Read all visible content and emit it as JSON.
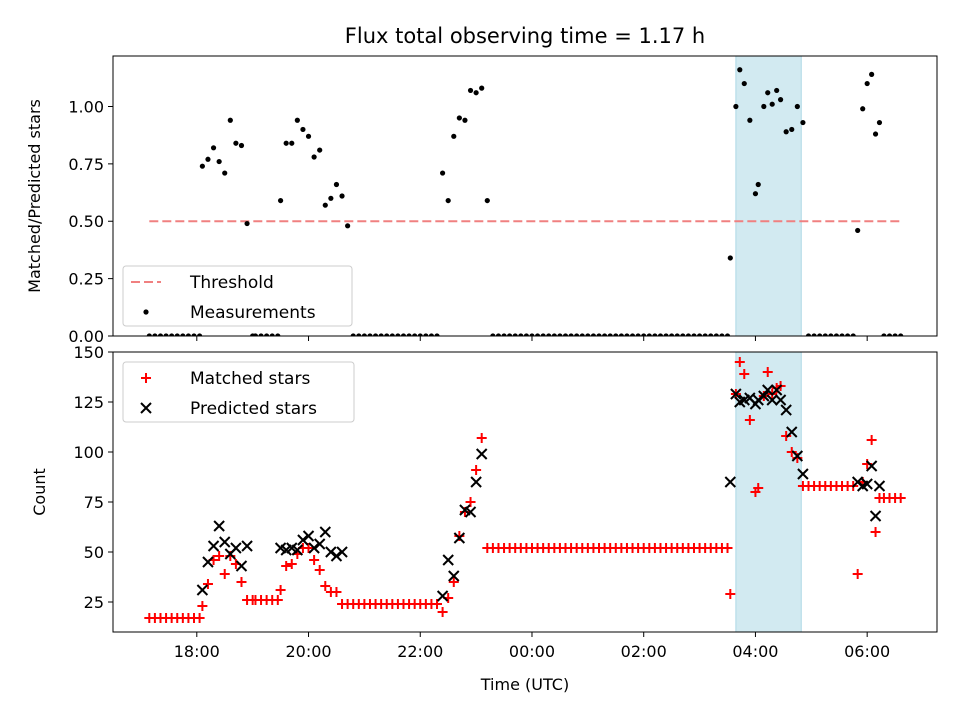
{
  "figure": {
    "title": "Flux total observing time = 1.17 h",
    "xlabel": "Time (UTC)",
    "x_tick_labels": [
      "18:00",
      "20:00",
      "22:00",
      "00:00",
      "02:00",
      "04:00",
      "06:00"
    ]
  },
  "colors": {
    "threshold": "#f08080",
    "measurements": "#000000",
    "matched": "#ff0000",
    "predicted": "#000000",
    "highlight": "#add8e6"
  },
  "chart_data": [
    {
      "type": "scatter",
      "ylabel": "Matched/Predicted stars",
      "x_unit": "hours since 00:00 UTC",
      "xlim": [
        -7.5,
        7.25
      ],
      "ylim": [
        0,
        1.22
      ],
      "y_ticks": [
        0.0,
        0.25,
        0.5,
        0.75,
        1.0
      ],
      "y_tick_labels": [
        "0.00",
        "0.25",
        "0.50",
        "0.75",
        "1.00"
      ],
      "legend_position": "lower-left",
      "highlight_span": [
        3.65,
        4.82
      ],
      "series": [
        {
          "name": "Threshold",
          "style": "dashed-line",
          "x": [
            -6.85,
            6.6
          ],
          "y": [
            0.5,
            0.5
          ]
        },
        {
          "name": "Measurements",
          "style": "dot",
          "x": [
            -6.85,
            -6.75,
            -6.65,
            -6.55,
            -6.45,
            -6.35,
            -6.25,
            -6.15,
            -6.05,
            -5.95,
            -5.9,
            -5.8,
            -5.7,
            -5.6,
            -5.5,
            -5.4,
            -5.3,
            -5.2,
            -5.1,
            -5.0,
            -4.95,
            -4.85,
            -4.75,
            -4.65,
            -4.55,
            -4.5,
            -4.4,
            -4.3,
            -4.2,
            -4.1,
            -4.0,
            -3.9,
            -3.8,
            -3.7,
            -3.6,
            -3.5,
            -3.4,
            -3.3,
            -3.2,
            -3.1,
            -3.0,
            -2.9,
            -2.8,
            -2.7,
            -2.6,
            -2.5,
            -2.4,
            -2.3,
            -2.2,
            -2.1,
            -2.0,
            -1.9,
            -1.8,
            -1.7,
            -1.6,
            -1.5,
            -1.4,
            -1.3,
            -1.2,
            -1.1,
            -1.0,
            -0.9,
            -0.8,
            -0.7,
            -0.6,
            -0.5,
            -0.4,
            -0.3,
            -0.2,
            -0.1,
            0.0,
            0.1,
            0.2,
            0.3,
            0.4,
            0.5,
            0.6,
            0.7,
            0.8,
            0.9,
            1.0,
            1.1,
            1.2,
            1.3,
            1.4,
            1.5,
            1.6,
            1.7,
            1.8,
            1.9,
            2.0,
            2.1,
            2.2,
            2.3,
            2.4,
            2.5,
            2.6,
            2.7,
            2.8,
            2.9,
            3.0,
            3.1,
            3.2,
            3.3,
            3.4,
            3.5,
            3.55,
            3.65,
            3.72,
            3.8,
            3.9,
            4.0,
            4.05,
            4.15,
            4.22,
            4.3,
            4.38,
            4.45,
            4.55,
            4.65,
            4.75,
            4.85,
            4.95,
            5.05,
            5.15,
            5.25,
            5.35,
            5.45,
            5.55,
            5.65,
            5.75,
            5.83,
            5.92,
            6.0,
            6.08,
            6.15,
            6.22,
            6.3,
            6.4,
            6.5,
            6.6
          ],
          "y": [
            0,
            0,
            0,
            0,
            0,
            0,
            0,
            0,
            0,
            0,
            0.74,
            0.77,
            0.82,
            0.76,
            0.71,
            0.94,
            0.84,
            0.83,
            0.49,
            0,
            0,
            0,
            0,
            0,
            0,
            0.59,
            0.84,
            0.84,
            0.94,
            0.9,
            0.87,
            0.78,
            0.81,
            0.57,
            0.6,
            0.66,
            0.61,
            0.48,
            0,
            0,
            0,
            0,
            0,
            0,
            0,
            0,
            0,
            0,
            0,
            0,
            0,
            0,
            0,
            0,
            0.71,
            0.59,
            0.87,
            0.95,
            0.94,
            1.07,
            1.06,
            1.08,
            0.59,
            0,
            0,
            0,
            0,
            0,
            0,
            0,
            0,
            0,
            0,
            0,
            0,
            0,
            0,
            0,
            0,
            0,
            0,
            0,
            0,
            0,
            0,
            0,
            0,
            0,
            0,
            0,
            0,
            0,
            0,
            0,
            0,
            0,
            0,
            0,
            0,
            0,
            0,
            0,
            0,
            0,
            0,
            0,
            0.34,
            1.0,
            1.16,
            1.1,
            0.94,
            0.62,
            0.66,
            1.0,
            1.06,
            1.01,
            1.07,
            1.03,
            0.89,
            0.9,
            1.0,
            0.93,
            0,
            0,
            0,
            0,
            0,
            0,
            0,
            0,
            0,
            0.46,
            0.99,
            1.1,
            1.14,
            0.88,
            0.93,
            0,
            0,
            0,
            0
          ]
        }
      ]
    },
    {
      "type": "scatter",
      "ylabel": "Count",
      "x_unit": "hours since 00:00 UTC",
      "xlim": [
        -7.5,
        7.25
      ],
      "ylim": [
        10,
        150
      ],
      "y_ticks": [
        25,
        50,
        75,
        100,
        125,
        150
      ],
      "y_tick_labels": [
        "25",
        "50",
        "75",
        "100",
        "125",
        "150"
      ],
      "legend_position": "upper-left",
      "highlight_span": [
        3.65,
        4.82
      ],
      "series": [
        {
          "name": "Matched stars",
          "style": "plus",
          "x": [
            -6.85,
            -6.75,
            -6.65,
            -6.55,
            -6.45,
            -6.35,
            -6.25,
            -6.15,
            -6.05,
            -5.95,
            -5.9,
            -5.8,
            -5.7,
            -5.6,
            -5.5,
            -5.4,
            -5.3,
            -5.2,
            -5.1,
            -5.0,
            -4.95,
            -4.85,
            -4.75,
            -4.65,
            -4.55,
            -4.5,
            -4.4,
            -4.3,
            -4.2,
            -4.1,
            -4.0,
            -3.9,
            -3.8,
            -3.7,
            -3.6,
            -3.5,
            -3.4,
            -3.3,
            -3.2,
            -3.1,
            -3.0,
            -2.9,
            -2.8,
            -2.7,
            -2.6,
            -2.5,
            -2.4,
            -2.3,
            -2.2,
            -2.1,
            -2.0,
            -1.9,
            -1.8,
            -1.7,
            -1.6,
            -1.5,
            -1.4,
            -1.3,
            -1.2,
            -1.1,
            -1.0,
            -0.9,
            -0.8,
            -0.7,
            -0.6,
            -0.5,
            -0.4,
            -0.3,
            -0.2,
            -0.1,
            0.0,
            0.1,
            0.2,
            0.3,
            0.4,
            0.5,
            0.6,
            0.7,
            0.8,
            0.9,
            1.0,
            1.1,
            1.2,
            1.3,
            1.4,
            1.5,
            1.6,
            1.7,
            1.8,
            1.9,
            2.0,
            2.1,
            2.2,
            2.3,
            2.4,
            2.5,
            2.6,
            2.7,
            2.8,
            2.9,
            3.0,
            3.1,
            3.2,
            3.3,
            3.4,
            3.5,
            3.55,
            3.65,
            3.72,
            3.8,
            3.9,
            4.0,
            4.05,
            4.15,
            4.22,
            4.3,
            4.38,
            4.45,
            4.55,
            4.65,
            4.75,
            4.85,
            4.95,
            5.05,
            5.15,
            5.25,
            5.35,
            5.45,
            5.55,
            5.65,
            5.75,
            5.83,
            5.92,
            6.0,
            6.08,
            6.15,
            6.22,
            6.3,
            6.4,
            6.5,
            6.6
          ],
          "y": [
            17,
            17,
            17,
            17,
            17,
            17,
            17,
            17,
            17,
            17,
            23,
            34,
            46,
            48,
            39,
            48,
            44,
            35,
            26,
            26,
            26,
            26,
            26,
            26,
            26,
            31,
            43,
            44,
            49,
            52,
            52,
            46,
            41,
            33,
            30,
            30,
            24,
            24,
            24,
            24,
            24,
            24,
            24,
            24,
            24,
            24,
            24,
            24,
            24,
            24,
            24,
            24,
            24,
            24,
            20,
            27,
            35,
            58,
            70,
            75,
            91,
            107,
            52,
            52,
            52,
            52,
            52,
            52,
            52,
            52,
            52,
            52,
            52,
            52,
            52,
            52,
            52,
            52,
            52,
            52,
            52,
            52,
            52,
            52,
            52,
            52,
            52,
            52,
            52,
            52,
            52,
            52,
            52,
            52,
            52,
            52,
            52,
            52,
            52,
            52,
            52,
            52,
            52,
            52,
            52,
            52,
            29,
            129,
            145,
            139,
            116,
            80,
            82,
            128,
            140,
            129,
            132,
            133,
            108,
            100,
            97,
            83,
            83,
            83,
            83,
            83,
            83,
            83,
            83,
            83,
            83,
            39,
            85,
            94,
            106,
            60,
            77,
            77,
            77,
            77,
            77
          ]
        },
        {
          "name": "Predicted stars",
          "style": "cross",
          "x": [
            -5.9,
            -5.8,
            -5.7,
            -5.6,
            -5.5,
            -5.4,
            -5.3,
            -5.2,
            -5.1,
            -4.5,
            -4.4,
            -4.3,
            -4.2,
            -4.1,
            -4.0,
            -3.9,
            -3.8,
            -3.7,
            -3.6,
            -3.5,
            -3.4,
            -1.6,
            -1.5,
            -1.4,
            -1.3,
            -1.2,
            -1.1,
            -1.0,
            -0.9,
            3.55,
            3.65,
            3.72,
            3.8,
            3.9,
            4.0,
            4.05,
            4.15,
            4.22,
            4.3,
            4.38,
            4.45,
            4.55,
            4.65,
            4.75,
            4.85,
            5.83,
            5.92,
            6.0,
            6.08,
            6.15,
            6.22
          ],
          "y": [
            31,
            45,
            53,
            63,
            55,
            49,
            52,
            43,
            53,
            52,
            51,
            52,
            51,
            56,
            58,
            52,
            54,
            60,
            50,
            48,
            50,
            28,
            46,
            38,
            57,
            71,
            70,
            85,
            99,
            85,
            129,
            125,
            126,
            127,
            124,
            126,
            128,
            131,
            126,
            131,
            126,
            121,
            110,
            98,
            89,
            85,
            83,
            84,
            93,
            68,
            83
          ]
        }
      ]
    }
  ]
}
